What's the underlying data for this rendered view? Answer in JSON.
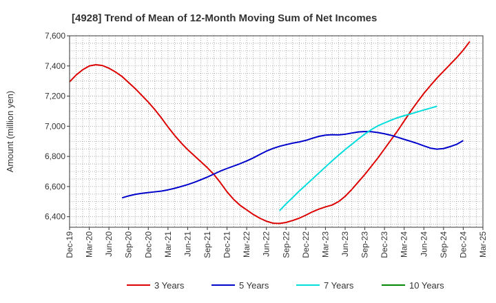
{
  "chart_data": {
    "type": "line",
    "title": "[4928]  Trend of Mean of 12-Month Moving Sum of Net Incomes",
    "xlabel": "",
    "ylabel": "Amount (million yen)",
    "ylim": [
      6330,
      7600
    ],
    "yticks": [
      6400,
      6600,
      6800,
      7000,
      7200,
      7400,
      7600
    ],
    "ytick_labels": [
      "6,400",
      "6,600",
      "6,800",
      "7,000",
      "7,200",
      "7,400",
      "7,600"
    ],
    "x_ticks": [
      "Dec-19",
      "Mar-20",
      "Jun-20",
      "Sep-20",
      "Dec-20",
      "Mar-21",
      "Jun-21",
      "Sep-21",
      "Dec-21",
      "Mar-22",
      "Jun-22",
      "Sep-22",
      "Dec-22",
      "Mar-23",
      "Jun-23",
      "Sep-23",
      "Dec-23",
      "Mar-24",
      "Jun-24",
      "Sep-24",
      "Dec-24",
      "Mar-25"
    ],
    "grid": true,
    "legend_position": "bottom",
    "series": [
      {
        "name": "3 Years",
        "color": "#dd0000",
        "start": "Dec-19",
        "values": [
          7295,
          7340,
          7375,
          7400,
          7408,
          7403,
          7385,
          7360,
          7330,
          7290,
          7250,
          7205,
          7160,
          7110,
          7055,
          6995,
          6940,
          6890,
          6845,
          6805,
          6765,
          6725,
          6680,
          6625,
          6565,
          6515,
          6475,
          6445,
          6415,
          6390,
          6370,
          6357,
          6355,
          6362,
          6375,
          6390,
          6410,
          6432,
          6450,
          6465,
          6477,
          6500,
          6535,
          6580,
          6630,
          6680,
          6735,
          6790,
          6850,
          6910,
          6970,
          7035,
          7100,
          7160,
          7218,
          7270,
          7320,
          7365,
          7410,
          7455,
          7505,
          7562
        ]
      },
      {
        "name": "5 Years",
        "color": "#0000cc",
        "start": "Aug-20",
        "values": [
          6525,
          6538,
          6548,
          6555,
          6560,
          6565,
          6570,
          6578,
          6588,
          6600,
          6613,
          6628,
          6645,
          6663,
          6683,
          6703,
          6720,
          6736,
          6752,
          6770,
          6790,
          6813,
          6835,
          6853,
          6867,
          6878,
          6888,
          6896,
          6906,
          6920,
          6933,
          6941,
          6944,
          6943,
          6947,
          6955,
          6962,
          6965,
          6964,
          6958,
          6950,
          6940,
          6927,
          6913,
          6900,
          6886,
          6870,
          6855,
          6848,
          6852,
          6865,
          6880,
          6905
        ]
      },
      {
        "name": "7 Years",
        "color": "#00dddd",
        "start": "Aug-22",
        "values": [
          6440,
          6485,
          6527,
          6570,
          6610,
          6650,
          6690,
          6730,
          6770,
          6808,
          6845,
          6880,
          6915,
          6948,
          6978,
          7003,
          7022,
          7040,
          7057,
          7070,
          7082,
          7095,
          7108,
          7120,
          7133
        ]
      },
      {
        "name": "10 Years",
        "color": "#008800",
        "start": "Dec-24",
        "values": []
      }
    ]
  }
}
